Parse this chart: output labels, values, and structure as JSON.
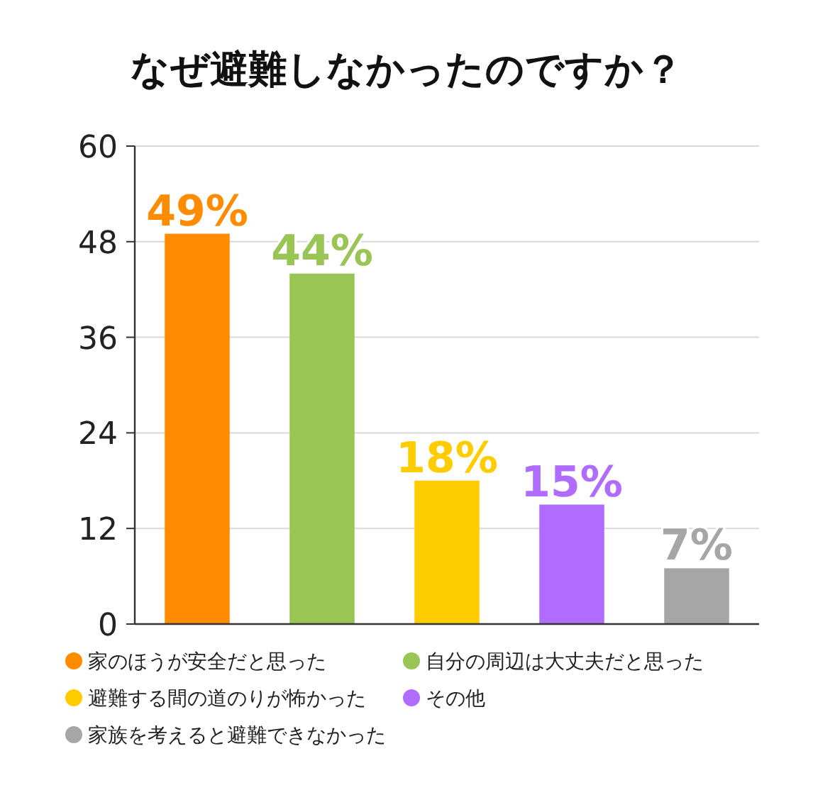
{
  "chart_data": {
    "type": "bar",
    "title": "なぜ避難しなかったのですか？",
    "categories": [
      null,
      null,
      null,
      null,
      null
    ],
    "series": [
      {
        "name": "家のほうが安全だと思った",
        "color": "#ff8c00",
        "values": [
          49,
          null,
          null,
          null,
          null
        ],
        "value_labels": [
          "49%",
          null,
          null,
          null,
          null
        ]
      },
      {
        "name": "自分の周辺は大丈夫だと思った",
        "color": "#99c555",
        "values": [
          null,
          44,
          null,
          null,
          null
        ],
        "value_labels": [
          null,
          "44%",
          null,
          null,
          null
        ]
      },
      {
        "name": "避難する間の道のりが怖かった",
        "color": "#ffcc00",
        "values": [
          null,
          null,
          18,
          null,
          null
        ],
        "value_labels": [
          null,
          null,
          "18%",
          null,
          null
        ]
      },
      {
        "name": "その他",
        "color": "#b06cff",
        "values": [
          null,
          null,
          null,
          15,
          null
        ],
        "value_labels": [
          null,
          null,
          null,
          "15%",
          null
        ]
      },
      {
        "name": "家族を考えると避難できなかった",
        "color": "#a6a6a6",
        "values": [
          null,
          null,
          null,
          null,
          7
        ],
        "value_labels": [
          null,
          null,
          null,
          null,
          "7%"
        ]
      }
    ],
    "ylim": [
      0,
      60
    ],
    "yticks": [
      0,
      12,
      24,
      36,
      48,
      60
    ],
    "grid": "y",
    "legend": "bottom",
    "tick_labels": "y"
  }
}
